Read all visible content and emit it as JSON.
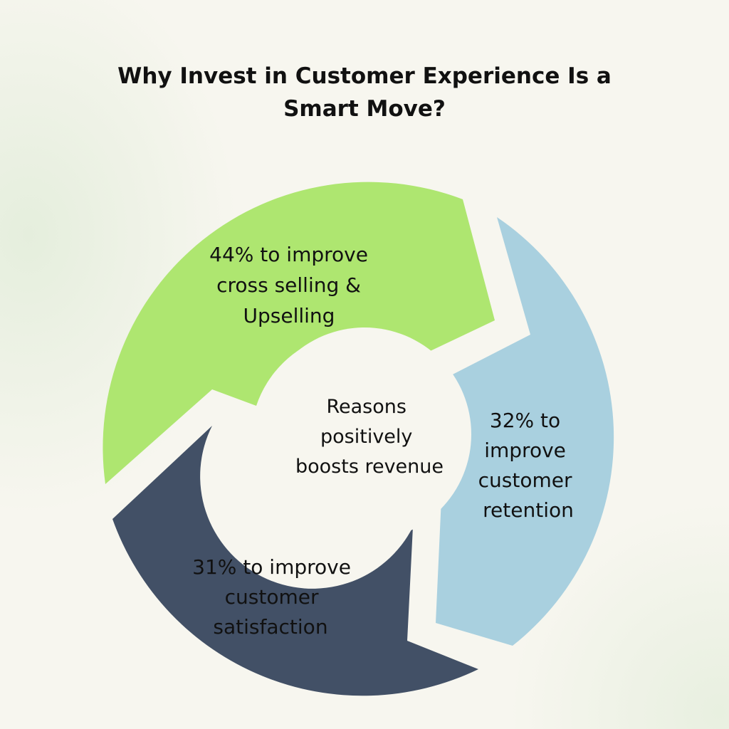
{
  "title": "Why Invest in Customer Experience Is a Smart Move?",
  "center": {
    "lines": [
      "Reasons",
      "positively",
      "boosts revenue"
    ]
  },
  "segments": [
    {
      "lines": [
        "44% to improve",
        "cross selling &",
        "Upselling"
      ],
      "color": "#aee670"
    },
    {
      "lines": [
        "32% to",
        "improve",
        "customer",
        "retention"
      ],
      "color": "#a9d0df"
    },
    {
      "lines": [
        "31% to improve",
        "customer",
        "satisfaction"
      ],
      "color": "#425066"
    }
  ],
  "colors": {
    "background": "#f7f6ef",
    "center_circle": "#f7f6ef",
    "text": "#111111"
  }
}
